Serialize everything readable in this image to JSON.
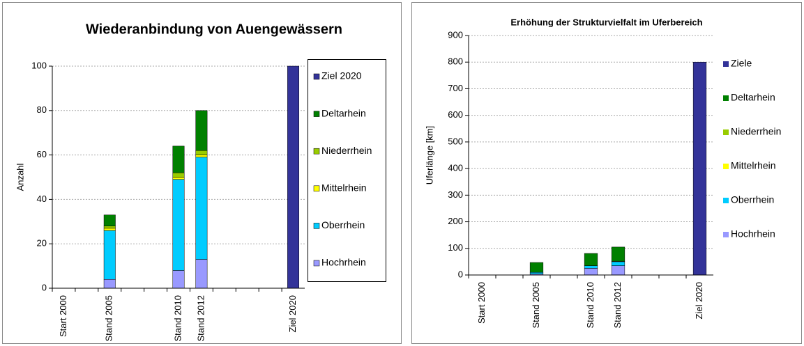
{
  "chart_data": [
    {
      "type": "bar",
      "stacked": true,
      "title": "Wiederanbindung von Auengewässern",
      "y_label": "Anzahl",
      "categories": [
        "Start 2000",
        null,
        "Stand 2005",
        null,
        null,
        "Stand 2010",
        "Stand 2012",
        null,
        null,
        null,
        "Ziel 2020"
      ],
      "series": [
        {
          "name": "Hochrhein",
          "color": "#9999ff",
          "values": [
            null,
            null,
            4,
            null,
            null,
            8,
            13,
            null,
            null,
            null,
            null
          ]
        },
        {
          "name": "Oberrhein",
          "color": "#00ccff",
          "values": [
            null,
            null,
            22,
            null,
            null,
            41,
            46,
            null,
            null,
            null,
            null
          ]
        },
        {
          "name": "Mittelrhein",
          "color": "#ffff00",
          "values": [
            null,
            null,
            1,
            null,
            null,
            1,
            1,
            null,
            null,
            null,
            null
          ]
        },
        {
          "name": "Niederrhein",
          "color": "#99cc00",
          "values": [
            null,
            null,
            1,
            null,
            null,
            2,
            2,
            null,
            null,
            null,
            null
          ]
        },
        {
          "name": "Deltarhein",
          "color": "#008000",
          "values": [
            null,
            null,
            5,
            null,
            null,
            12,
            18,
            null,
            null,
            null,
            null
          ]
        },
        {
          "name": "Ziel 2020",
          "color": "#333399",
          "values": [
            null,
            null,
            null,
            null,
            null,
            null,
            null,
            null,
            null,
            null,
            100
          ]
        }
      ],
      "ylim": [
        0,
        100
      ],
      "yticks": [
        0,
        20,
        40,
        60,
        80,
        100
      ],
      "grid": true,
      "legend": "right"
    },
    {
      "type": "bar",
      "stacked": true,
      "title": "Erhöhung der Strukturvielfalt im Uferbereich",
      "y_label": "Uferlänge [km]",
      "categories": [
        "Start 2000",
        null,
        "Stand 2005",
        null,
        "Stand 2010",
        "Stand 2012",
        null,
        null,
        "Ziel 2020"
      ],
      "series": [
        {
          "name": "Hochrhein",
          "color": "#9999ff",
          "values": [
            null,
            null,
            4,
            null,
            25,
            35,
            null,
            null,
            null
          ]
        },
        {
          "name": "Oberrhein",
          "color": "#00ccff",
          "values": [
            null,
            null,
            6,
            null,
            10,
            15,
            null,
            null,
            null
          ]
        },
        {
          "name": "Mittelrhein",
          "color": "#ffff00",
          "values": [
            null,
            null,
            0,
            null,
            0,
            0,
            null,
            null,
            null
          ]
        },
        {
          "name": "Niederrhein",
          "color": "#99cc00",
          "values": [
            null,
            null,
            0,
            null,
            0,
            2,
            null,
            null,
            null
          ]
        },
        {
          "name": "Deltarhein",
          "color": "#008000",
          "values": [
            null,
            null,
            37,
            null,
            46,
            53,
            null,
            null,
            null
          ]
        },
        {
          "name": "Ziele",
          "color": "#333399",
          "values": [
            null,
            null,
            null,
            null,
            null,
            null,
            null,
            null,
            800
          ]
        }
      ],
      "ylim": [
        0,
        900
      ],
      "yticks": [
        0,
        100,
        200,
        300,
        400,
        500,
        600,
        700,
        800,
        900
      ],
      "grid": true,
      "legend": "right"
    }
  ]
}
